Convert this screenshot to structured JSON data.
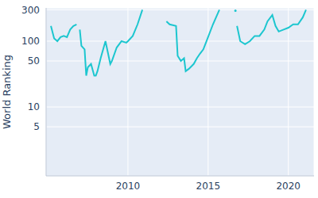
{
  "chart_data": {
    "type": "line",
    "y_label": "World Ranking",
    "color": "#1cc6cf",
    "log": "y",
    "grid": true,
    "xlim": [
      2004.9,
      2021.6
    ],
    "xticks": [
      2010,
      2015,
      2020
    ],
    "ylim": [
      0.9,
      320
    ],
    "yticks": [
      5,
      10,
      50,
      100,
      300
    ],
    "x": [
      2005.2,
      2005.4,
      2005.6,
      2005.8,
      2006.0,
      2006.2,
      2006.4,
      2006.6,
      2006.8,
      2006.9,
      2007.0,
      2007.1,
      2007.3,
      2007.4,
      2007.5,
      2007.7,
      2007.9,
      2008.0,
      2008.1,
      2008.3,
      2008.6,
      2008.9,
      2009.0,
      2009.3,
      2009.6,
      2009.9,
      2010.0,
      2010.3,
      2010.6,
      2010.9,
      2011.5,
      2012.4,
      2012.6,
      2013.0,
      2013.1,
      2013.3,
      2013.5,
      2013.6,
      2013.8,
      2014.1,
      2014.3,
      2014.5,
      2014.7,
      2014.9,
      2015.3,
      2015.7,
      2016.2,
      2016.7,
      2016.75,
      2016.8,
      2017.0,
      2017.3,
      2017.6,
      2017.9,
      2018.2,
      2018.5,
      2018.7,
      2019.0,
      2019.2,
      2019.4,
      2019.7,
      2020.0,
      2020.3,
      2020.6,
      2020.9,
      2021.1
    ],
    "values": [
      170,
      110,
      100,
      115,
      120,
      115,
      150,
      170,
      180,
      null,
      150,
      85,
      75,
      30,
      40,
      45,
      30,
      30,
      35,
      55,
      100,
      45,
      50,
      80,
      100,
      95,
      100,
      120,
      180,
      300,
      null,
      200,
      180,
      170,
      60,
      50,
      55,
      35,
      38,
      45,
      55,
      65,
      75,
      100,
      180,
      300,
      null,
      290,
      null,
      170,
      100,
      90,
      100,
      120,
      120,
      150,
      200,
      250,
      170,
      140,
      150,
      160,
      180,
      180,
      230,
      300
    ]
  }
}
